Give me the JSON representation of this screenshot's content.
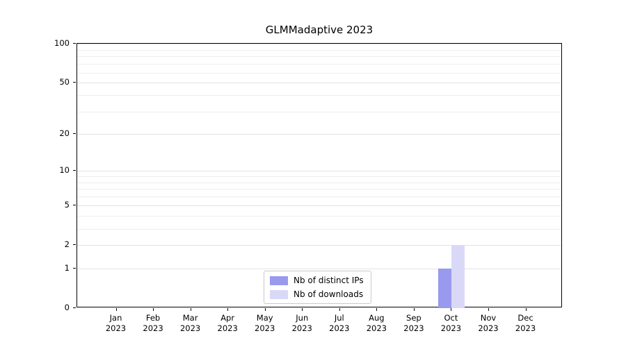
{
  "chart_data": {
    "type": "bar",
    "title": "GLMMadaptive 2023",
    "scale": "log1p",
    "grid": "horizontal-minor",
    "categories": [
      "Jan",
      "Feb",
      "Mar",
      "Apr",
      "May",
      "Jun",
      "Jul",
      "Aug",
      "Sep",
      "Oct",
      "Nov",
      "Dec"
    ],
    "year": "2023",
    "yticks": [
      0,
      1,
      2,
      5,
      10,
      20,
      50,
      100
    ],
    "ylim": [
      0,
      100
    ],
    "series": [
      {
        "name": "Nb of distinct IPs",
        "color": "#9999ee",
        "values": [
          0,
          0,
          0,
          0,
          0,
          0,
          0,
          0,
          0,
          1,
          0,
          0
        ]
      },
      {
        "name": "Nb of downloads",
        "color": "#d9d9f7",
        "values": [
          0,
          0,
          0,
          0,
          0,
          0,
          0,
          0,
          0,
          2,
          0,
          0
        ]
      }
    ],
    "legend_position": "lower-center",
    "colors": {
      "grid_minor": "#ededed",
      "grid_major": "#e2e2e2",
      "spine": "#000000"
    }
  }
}
